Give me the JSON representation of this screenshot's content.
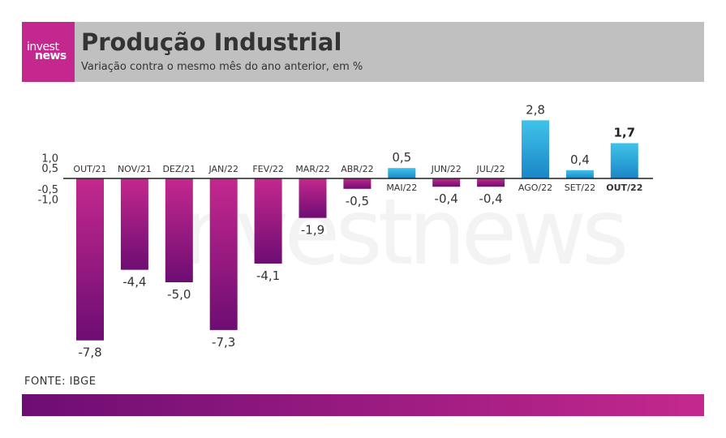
{
  "brand": {
    "logo_line1": "invest",
    "logo_line2": "news",
    "watermark": "investnews"
  },
  "header": {
    "title": "Produção Industrial",
    "subtitle": "Variação contra o mesmo mês do ano anterior, em %"
  },
  "source": "FONTE: IBGE",
  "colors": {
    "negative": "#8e1a80",
    "positive": "#2a9fd6",
    "highlight_label": "#222222"
  },
  "chart_data": {
    "type": "bar",
    "title": "Produção Industrial",
    "subtitle": "Variação contra o mesmo mês do ano anterior, em %",
    "categories": [
      "OUT/21",
      "NOV/21",
      "DEZ/21",
      "JAN/22",
      "FEV/22",
      "MAR/22",
      "ABR/22",
      "MAI/22",
      "JUN/22",
      "JUL/22",
      "AGO/22",
      "SET/22",
      "OUT/22"
    ],
    "values": [
      -7.8,
      -4.4,
      -5.0,
      -7.3,
      -4.1,
      -1.9,
      -0.5,
      0.5,
      -0.4,
      -0.4,
      2.8,
      0.4,
      1.7
    ],
    "value_labels": [
      "-7,8",
      "-4,4",
      "-5,0",
      "-7,3",
      "-4,1",
      "-1,9",
      "-0,5",
      "0,5",
      "-0,4",
      "-0,4",
      "2,8",
      "0,4",
      "1,7"
    ],
    "highlight_index": 12,
    "yticks": [
      "1,0",
      "0,5",
      "-0,5",
      "-1,0"
    ],
    "ytick_values": [
      1.0,
      0.5,
      -0.5,
      -1.0
    ],
    "xlabel": "",
    "ylabel": "",
    "ylim": [
      -8.0,
      3.2
    ],
    "grid": false,
    "legend": "none"
  }
}
